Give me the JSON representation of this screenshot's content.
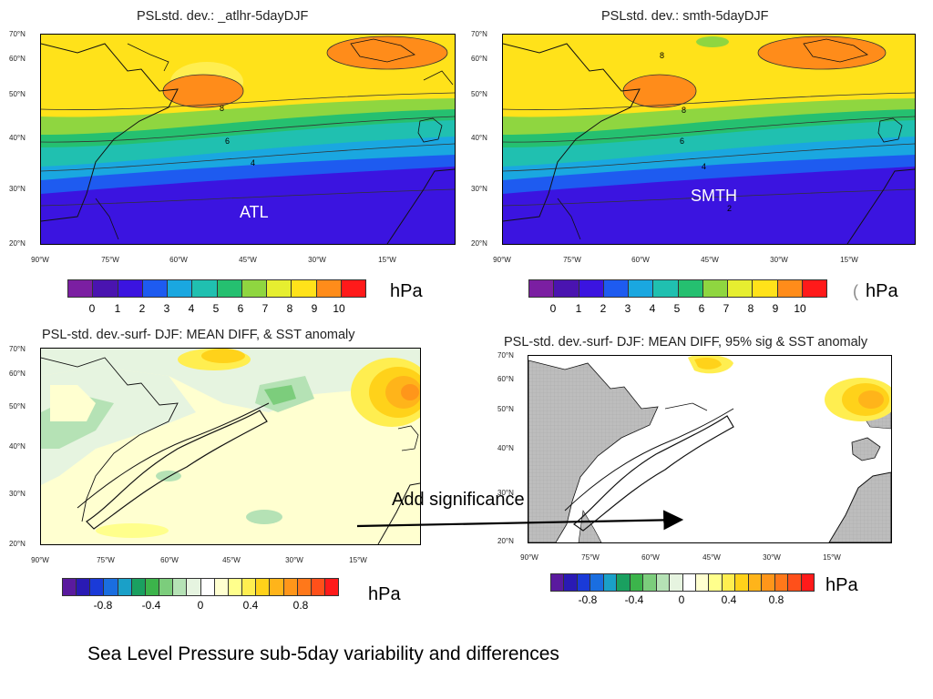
{
  "panels": {
    "top_left": {
      "title": "PSLstd. dev.:  _atlhr-5dayDJF",
      "region_label": "ATL",
      "colorbar_ticks": [
        "0",
        "1",
        "2",
        "3",
        "4",
        "5",
        "6",
        "7",
        "8",
        "9",
        "10"
      ],
      "unit": "hPa",
      "contour_labels": [
        "8",
        "6",
        "4"
      ]
    },
    "top_right": {
      "title": "PSLstd. dev.:  smth-5dayDJF",
      "region_label": "SMTH",
      "colorbar_ticks": [
        "0",
        "1",
        "2",
        "3",
        "4",
        "5",
        "6",
        "7",
        "8",
        "9",
        "10"
      ],
      "unit": "hPa",
      "contour_labels": [
        "8",
        "8",
        "6",
        "4",
        "2"
      ]
    },
    "bottom_left": {
      "title": "PSL-std. dev.-surf- DJF: MEAN DIFF,  & SST anomaly",
      "colorbar_ticks": [
        "-0.8",
        "-0.4",
        "0",
        "0.4",
        "0.8"
      ],
      "unit": "hPa"
    },
    "bottom_right": {
      "title": "PSL-std. dev.-surf- DJF: MEAN DIFF, 95% sig & SST anomaly",
      "colorbar_ticks": [
        "-0.8",
        "-0.4",
        "0",
        "0.4",
        "0.8"
      ],
      "unit": "hPa"
    }
  },
  "lat_labels": [
    "70°N",
    "60°N",
    "50°N",
    "40°N",
    "30°N",
    "20°N"
  ],
  "lon_labels": [
    "90°W",
    "75°W",
    "60°W",
    "45°W",
    "30°W",
    "15°W"
  ],
  "annotation": "Add significance",
  "caption": "Sea Level Pressure sub-5day variability and differences",
  "stray_mark": "(",
  "colors": {
    "seq_scale": [
      "#7b1fa2",
      "#4a14b0",
      "#3b14e0",
      "#1e5bf0",
      "#1aa7e0",
      "#20c0b0",
      "#25c070",
      "#8fd640",
      "#e6ee30",
      "#ffe21a",
      "#ff8c1a",
      "#ff1a1a"
    ],
    "div_scale": [
      "#5a1a9e",
      "#2a1ab4",
      "#1a3ad8",
      "#1a6ee0",
      "#1aa0c8",
      "#1aa060",
      "#3cb44b",
      "#7ccd7c",
      "#b5e2b5",
      "#e6f4e0",
      "#ffffff",
      "#ffffd0",
      "#ffff8c",
      "#ffee50",
      "#ffd21a",
      "#ffb41a",
      "#ff961a",
      "#ff781a",
      "#ff501a",
      "#ff1a1a"
    ]
  }
}
